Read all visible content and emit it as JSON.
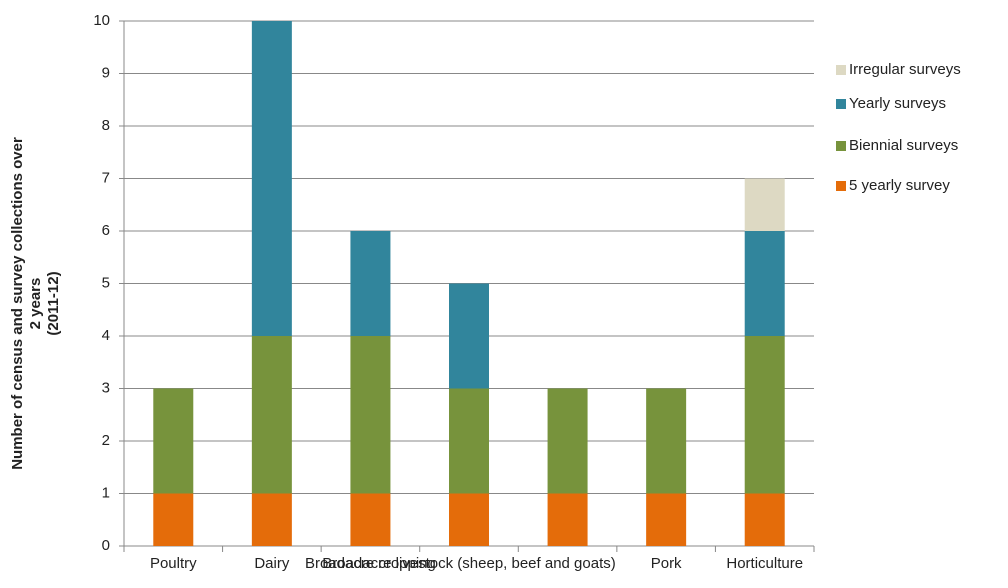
{
  "chart_data": {
    "type": "stacked_bar",
    "y_label": [
      "Number of census and survey collections over",
      "2 years",
      "(2011-12)"
    ],
    "categories": [
      "Poultry",
      "Dairy",
      "Broadacre cropping",
      "Broadacre livestock (sheep, beef and goats)",
      null,
      "Pork",
      "Horticulture"
    ],
    "series": [
      {
        "name": "5 yearly survey",
        "color": "#e46c0a",
        "values": [
          1,
          1,
          1,
          1,
          1,
          1,
          1
        ]
      },
      {
        "name": "Biennial surveys",
        "color": "#77933c",
        "values": [
          2,
          3,
          3,
          2,
          2,
          2,
          3
        ]
      },
      {
        "name": "Yearly surveys",
        "color": "#31859c",
        "values": [
          0,
          6,
          2,
          2,
          0,
          0,
          2
        ]
      },
      {
        "name": "Irregular surveys",
        "color": "#ddd9c3",
        "values": [
          0,
          0,
          0,
          0,
          0,
          0,
          1
        ]
      }
    ],
    "ylim": [
      0,
      10
    ],
    "yticks": [
      0,
      1,
      2,
      3,
      4,
      5,
      6,
      7,
      8,
      9,
      10
    ],
    "grid": true
  }
}
